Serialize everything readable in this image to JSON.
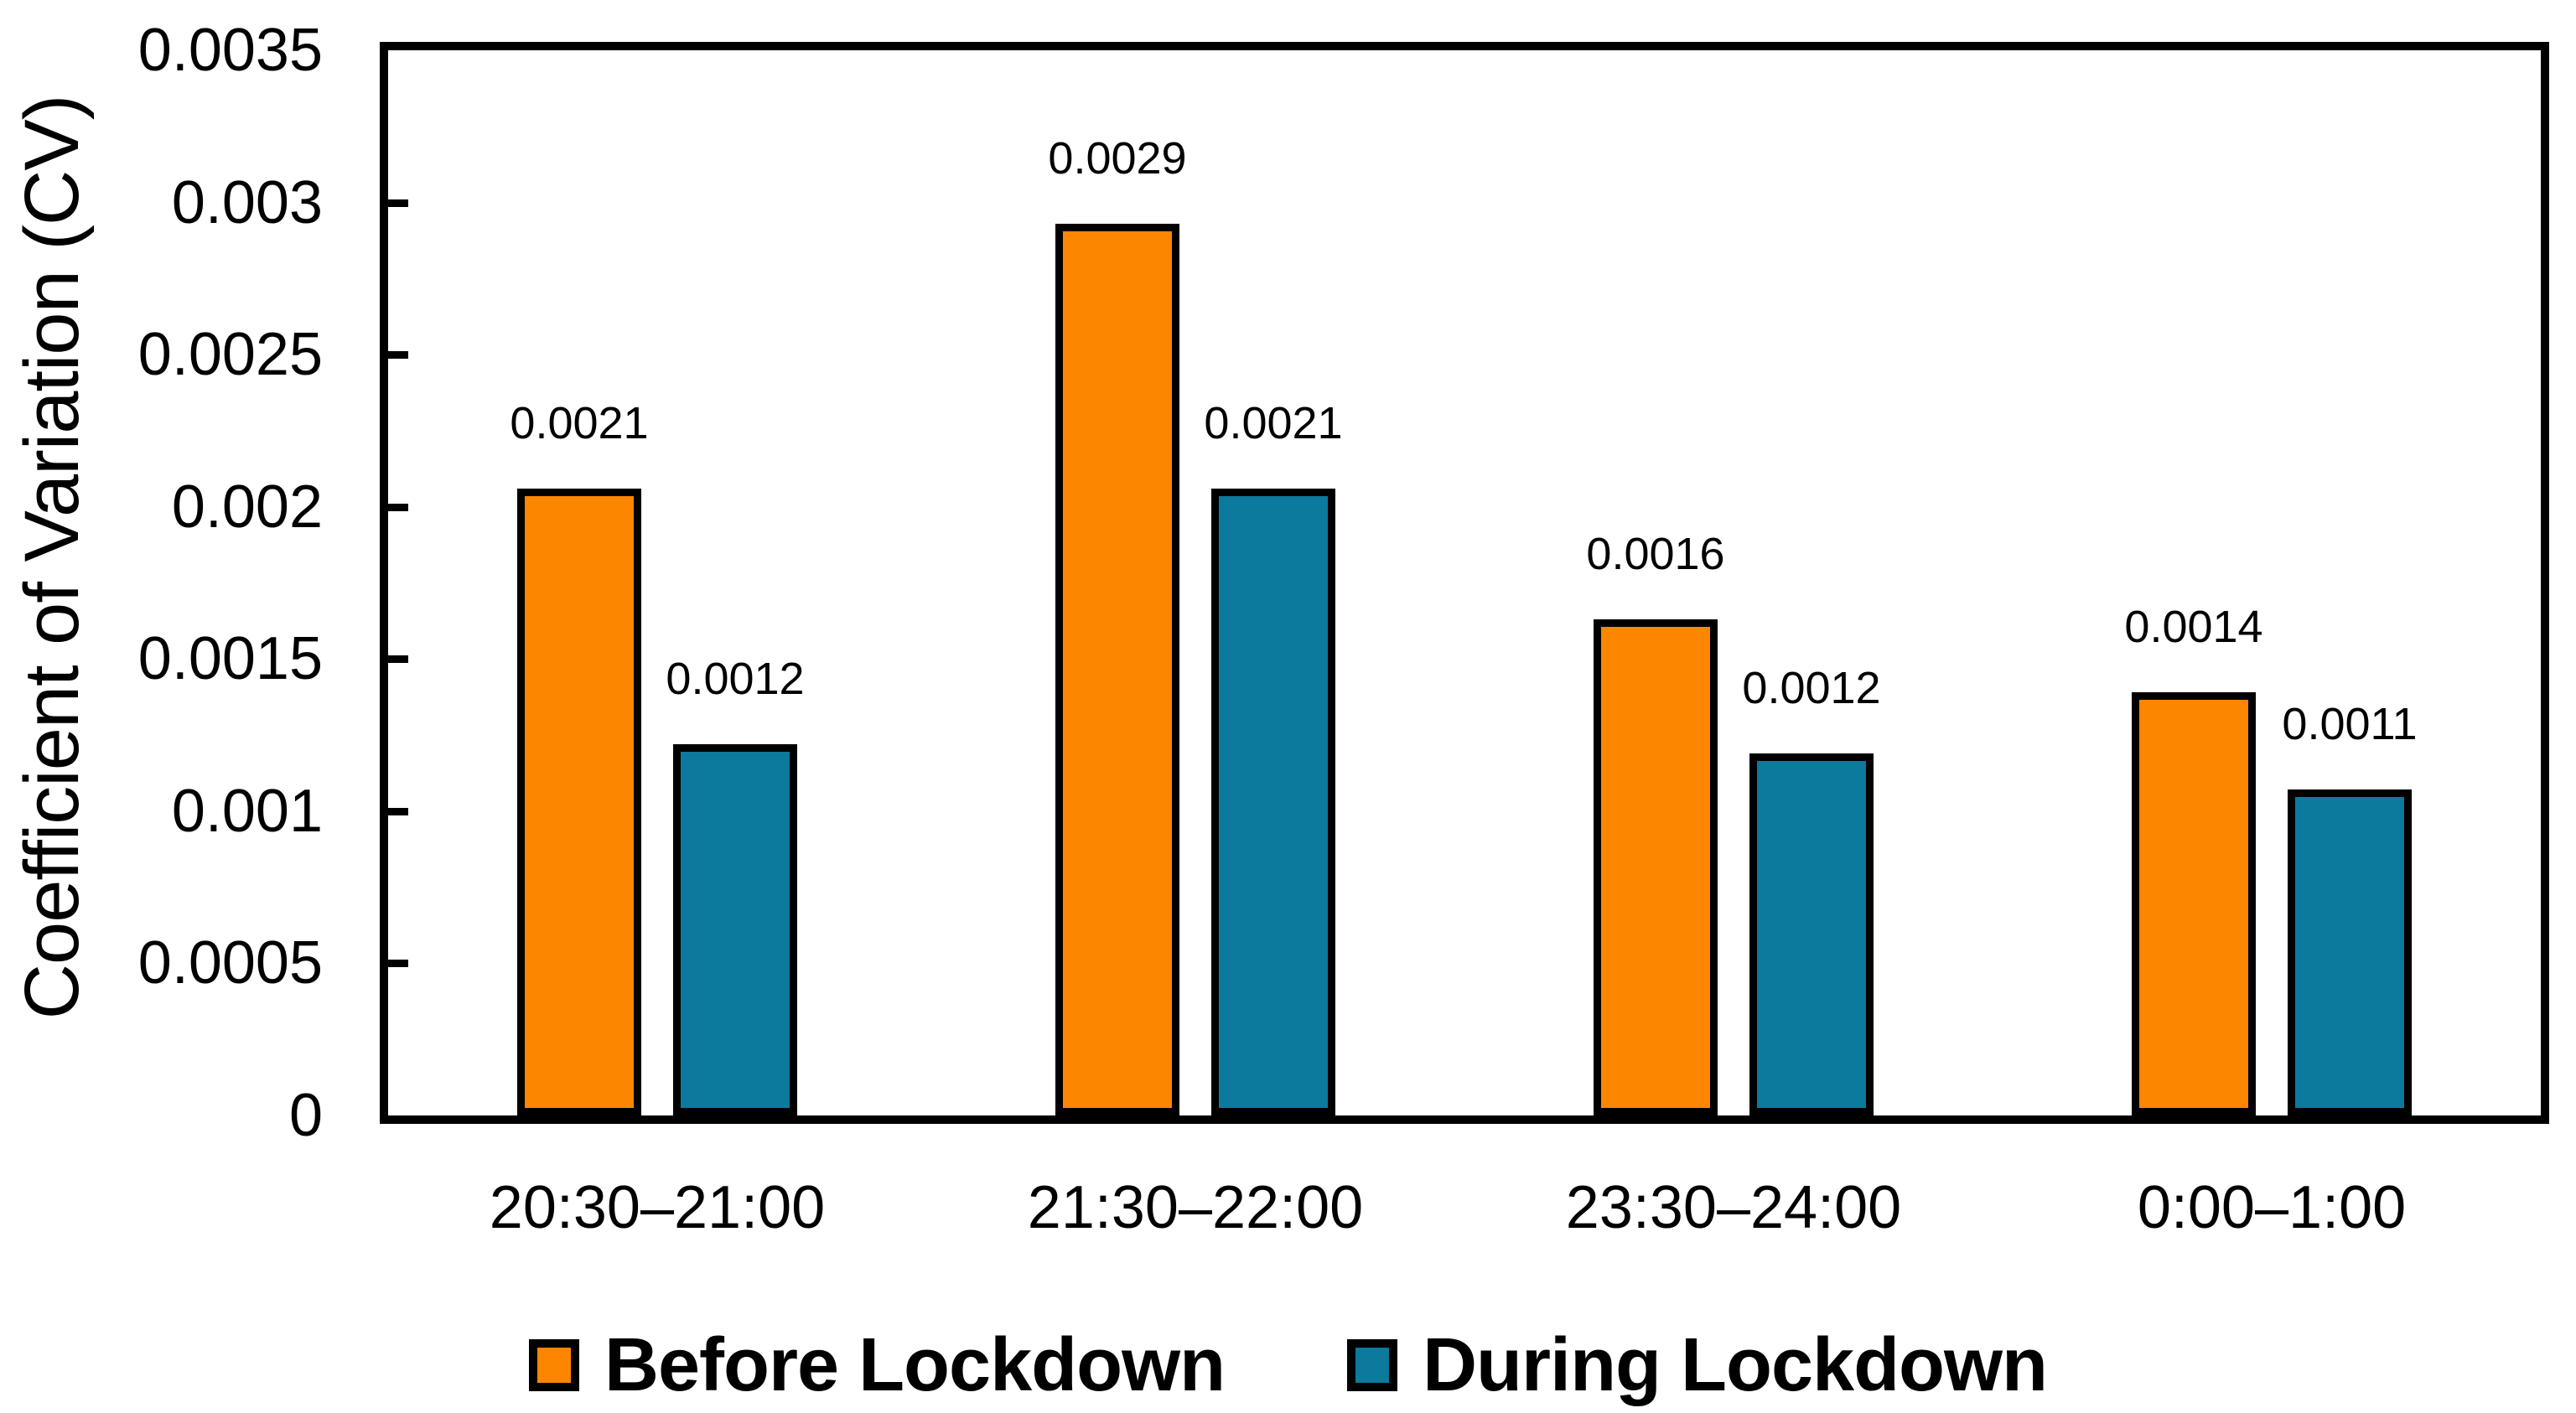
{
  "chart_data": {
    "type": "bar",
    "title": "",
    "xlabel": "",
    "ylabel": "Coefficient of Variation (CV)",
    "ylim": [
      0,
      0.0035
    ],
    "ytick_step": 0.0005,
    "yticks": [
      "0",
      "0.0005",
      "0.001",
      "0.0015",
      "0.002",
      "0.0025",
      "0.003",
      "0.0035"
    ],
    "categories": [
      "20:30–21:00",
      "21:30–22:00",
      "23:30–24:00",
      "0:00–1:00"
    ],
    "series": [
      {
        "name": "Before Lockdown",
        "color": "#FC8600",
        "values": [
          0.00206,
          0.00293,
          0.00163,
          0.00139
        ],
        "data_labels": [
          "0.0021",
          "0.0029",
          "0.0016",
          "0.0014"
        ]
      },
      {
        "name": "During Lockdown",
        "color": "#0B7A9D",
        "values": [
          0.00122,
          0.00206,
          0.00119,
          0.00107
        ],
        "data_labels": [
          "0.0012",
          "0.0021",
          "0.0012",
          "0.0011"
        ]
      }
    ],
    "grid": false,
    "legend_position": "bottom",
    "bar_border_color": "#000000",
    "axis_color": "#000000",
    "background_color": "#FFFFFF"
  }
}
